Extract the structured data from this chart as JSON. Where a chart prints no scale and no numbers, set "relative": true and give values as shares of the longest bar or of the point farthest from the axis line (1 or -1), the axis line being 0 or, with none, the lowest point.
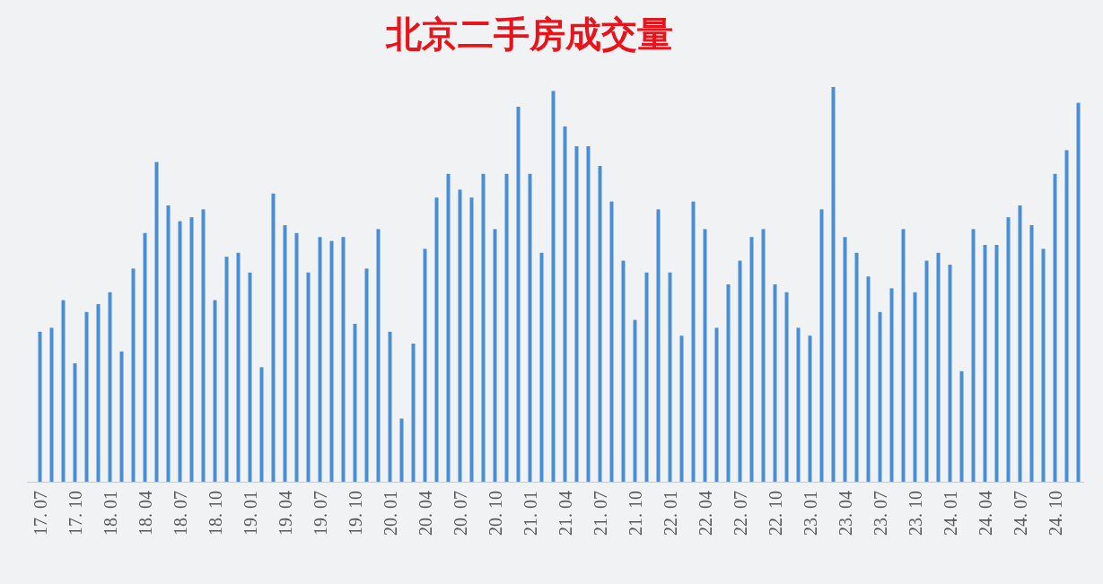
{
  "chart_data": {
    "type": "bar",
    "title": "北京二手房成交量",
    "relative": true,
    "color": "#4a8fd6",
    "categories": [
      "17. 07",
      null,
      null,
      "17. 10",
      null,
      null,
      "18. 01",
      null,
      null,
      "18. 04",
      null,
      null,
      "18. 07",
      null,
      null,
      "18. 10",
      null,
      null,
      "19. 01",
      null,
      null,
      "19. 04",
      null,
      null,
      "19. 07",
      null,
      null,
      "19. 10",
      null,
      null,
      "20. 01",
      null,
      null,
      "20. 04",
      null,
      null,
      "20. 07",
      null,
      null,
      "20. 10",
      null,
      null,
      "21. 01",
      null,
      null,
      "21. 04",
      null,
      null,
      "21. 07",
      null,
      null,
      "21. 10",
      null,
      null,
      "22. 01",
      null,
      null,
      "22. 04",
      null,
      null,
      "22. 07",
      null,
      null,
      "22. 10",
      null,
      null,
      "23. 01",
      null,
      null,
      "23. 04",
      null,
      null,
      "23. 07",
      null,
      null,
      "23. 10",
      null,
      null,
      "24. 01",
      null,
      null,
      "24. 04",
      null,
      null,
      "24. 07",
      null,
      null,
      "24. 10",
      null,
      null
    ],
    "values": [
      0.38,
      0.39,
      0.46,
      0.3,
      0.43,
      0.45,
      0.48,
      0.33,
      0.54,
      0.63,
      0.81,
      0.7,
      0.66,
      0.67,
      0.69,
      0.46,
      0.57,
      0.58,
      0.53,
      0.29,
      0.73,
      0.65,
      0.63,
      0.53,
      0.62,
      0.61,
      0.62,
      0.4,
      0.54,
      0.64,
      0.38,
      0.16,
      0.35,
      0.59,
      0.72,
      0.78,
      0.74,
      0.72,
      0.78,
      0.64,
      0.78,
      0.95,
      0.78,
      0.58,
      0.99,
      0.9,
      0.85,
      0.85,
      0.8,
      0.71,
      0.56,
      0.41,
      0.53,
      0.69,
      0.53,
      0.37,
      0.71,
      0.64,
      0.39,
      0.5,
      0.56,
      0.62,
      0.64,
      0.5,
      0.48,
      0.39,
      0.37,
      0.69,
      1,
      0.62,
      0.58,
      0.52,
      0.43,
      0.49,
      0.64,
      0.48,
      0.56,
      0.58,
      0.55,
      0.28,
      0.64,
      0.6,
      0.6,
      0.67,
      0.7,
      0.65,
      0.59,
      0.78,
      0.84,
      0.96
    ]
  }
}
